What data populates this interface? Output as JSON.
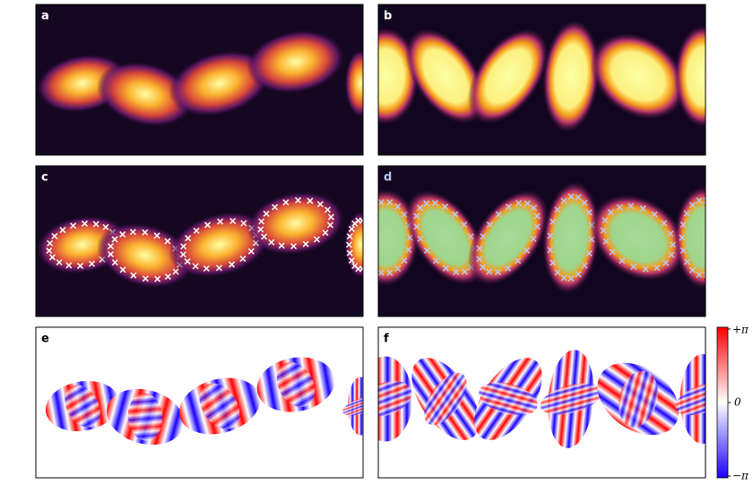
{
  "panels": [
    {
      "label": "a"
    },
    {
      "label": "b"
    },
    {
      "label": "c"
    },
    {
      "label": "d"
    },
    {
      "label": "e"
    },
    {
      "label": "f"
    }
  ],
  "colorbar": {
    "ticks": [
      "+π",
      "0",
      "−π"
    ]
  }
}
